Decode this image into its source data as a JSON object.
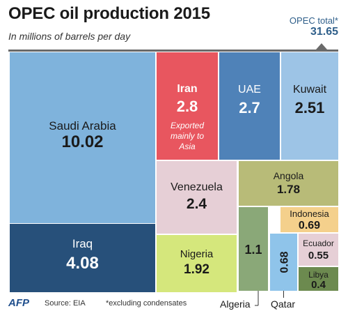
{
  "header": {
    "title": "OPEC oil production 2015",
    "subtitle": "In millions of barrels per day",
    "total_label": "OPEC total*",
    "total_value": "31.65"
  },
  "footer": {
    "logo": "AFP",
    "source": "Source: EIA",
    "note": "*excluding condensates",
    "algeria_callout": "Algeria",
    "qatar_callout": "Qatar"
  },
  "chart_data": {
    "type": "treemap",
    "title": "OPEC oil production 2015",
    "subtitle": "In millions of barrels per day",
    "total": 31.65,
    "items": [
      {
        "name": "Saudi Arabia",
        "value": 10.02,
        "color": "#7fb3dc"
      },
      {
        "name": "Iraq",
        "value": 4.08,
        "color": "#27507a"
      },
      {
        "name": "Iran",
        "value": 2.8,
        "color": "#e8565f",
        "note": "Exported mainly to Asia"
      },
      {
        "name": "UAE",
        "value": 2.7,
        "color": "#4f82b8"
      },
      {
        "name": "Kuwait",
        "value": 2.51,
        "color": "#9dc4e6"
      },
      {
        "name": "Venezuela",
        "value": 2.4,
        "color": "#e6cfd6"
      },
      {
        "name": "Nigeria",
        "value": 1.92,
        "color": "#d5e77c"
      },
      {
        "name": "Angola",
        "value": 1.78,
        "color": "#b8bb78"
      },
      {
        "name": "Algeria",
        "value": 1.1,
        "color": "#8aa878"
      },
      {
        "name": "Indonesia",
        "value": 0.69,
        "color": "#f4d08c"
      },
      {
        "name": "Qatar",
        "value": 0.68,
        "color": "#8fc4ea"
      },
      {
        "name": "Ecuador",
        "value": 0.55,
        "color": "#e6cfd6"
      },
      {
        "name": "Libya",
        "value": 0.4,
        "color": "#6c8a4f"
      }
    ]
  }
}
